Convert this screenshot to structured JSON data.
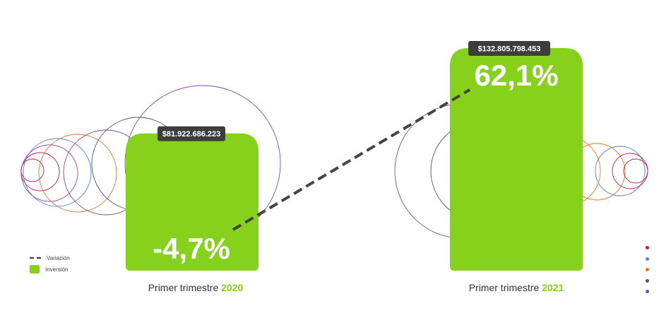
{
  "chart_data": {
    "type": "bar",
    "categories": [
      {
        "prefix": "Primer trimestre ",
        "year": "2020"
      },
      {
        "prefix": "Primer trimestre ",
        "year": "2021"
      }
    ],
    "values": [
      81922686223,
      132805798453
    ],
    "value_labels": [
      "$81.922.686.223",
      "$132.805.798.453"
    ],
    "variation_labels": [
      "-4,7%",
      "62,1%"
    ],
    "variation": [
      -4.7,
      62.1
    ],
    "legend": [
      {
        "label": "Variación",
        "marker": "dashed-line",
        "color": "#333333"
      },
      {
        "label": "Inversión",
        "marker": "box",
        "color": "#85d11c"
      }
    ],
    "ylim": [
      0,
      140000000000
    ],
    "grid": false
  },
  "colors": {
    "bar": "#85d11c",
    "year_text": "#85d11c",
    "tooltip_bg": "#3d3d3d",
    "variation_line": "#444444",
    "decor_rings": [
      "#c2185b",
      "#5c7fd6",
      "#e8731e",
      "#555555",
      "#7e4fa8"
    ]
  }
}
